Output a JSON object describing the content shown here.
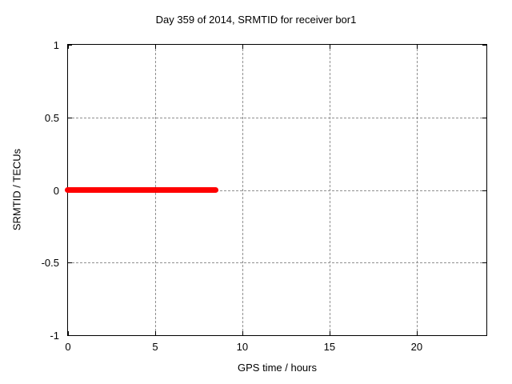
{
  "chart_data": {
    "type": "line",
    "title": "Day 359 of 2014, SRMTID for receiver bor1",
    "xlabel": "GPS time / hours",
    "ylabel": "SRMTID / TECUs",
    "xlim": [
      0,
      24
    ],
    "ylim": [
      -1,
      1
    ],
    "xticks": [
      0,
      5,
      10,
      15,
      20
    ],
    "yticks": [
      -1,
      -0.5,
      0,
      0.5,
      1
    ],
    "grid": true,
    "grid_color": "#909090",
    "background_color": "#ffffff",
    "border_color": "#000000",
    "series": [
      {
        "name": "SRMTID",
        "color": "#ff0000",
        "linewidth": 7,
        "points": [
          [
            0,
            0
          ],
          [
            8.5,
            0
          ]
        ]
      }
    ]
  }
}
